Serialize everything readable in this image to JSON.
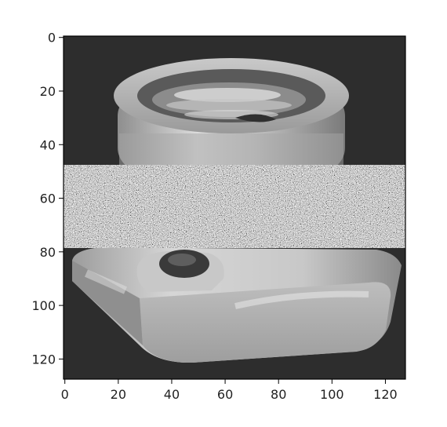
{
  "chart_data": {
    "type": "image",
    "colormap": "gray",
    "image_size": [
      128,
      128
    ],
    "x_ticks": [
      0,
      20,
      40,
      60,
      80,
      100,
      120
    ],
    "y_ticks": [
      0,
      20,
      40,
      60,
      80,
      100,
      120
    ],
    "xlim": [
      -0.5,
      127.5
    ],
    "ylim": [
      127.5,
      -0.5
    ],
    "noise_band_rows": [
      48,
      78
    ],
    "grid": false
  }
}
